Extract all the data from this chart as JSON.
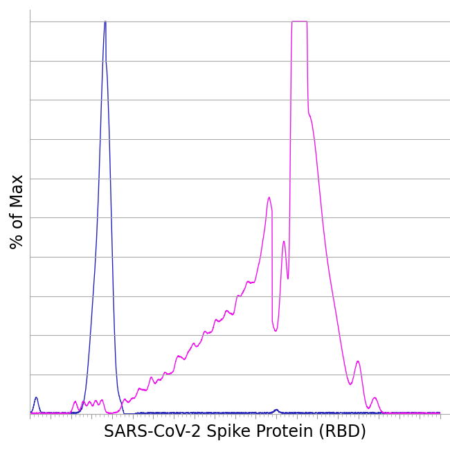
{
  "title": "",
  "xlabel": "SARS-CoV-2 Spike Protein (RBD)",
  "ylabel": "% of Max",
  "xlabel_fontsize": 17,
  "ylabel_fontsize": 17,
  "background_color": "#ffffff",
  "blue_color": "#2222bb",
  "pink_color": "#ee11ee",
  "linewidth": 1.0,
  "xlim": [
    0,
    1000
  ],
  "ylim": [
    0,
    103
  ]
}
